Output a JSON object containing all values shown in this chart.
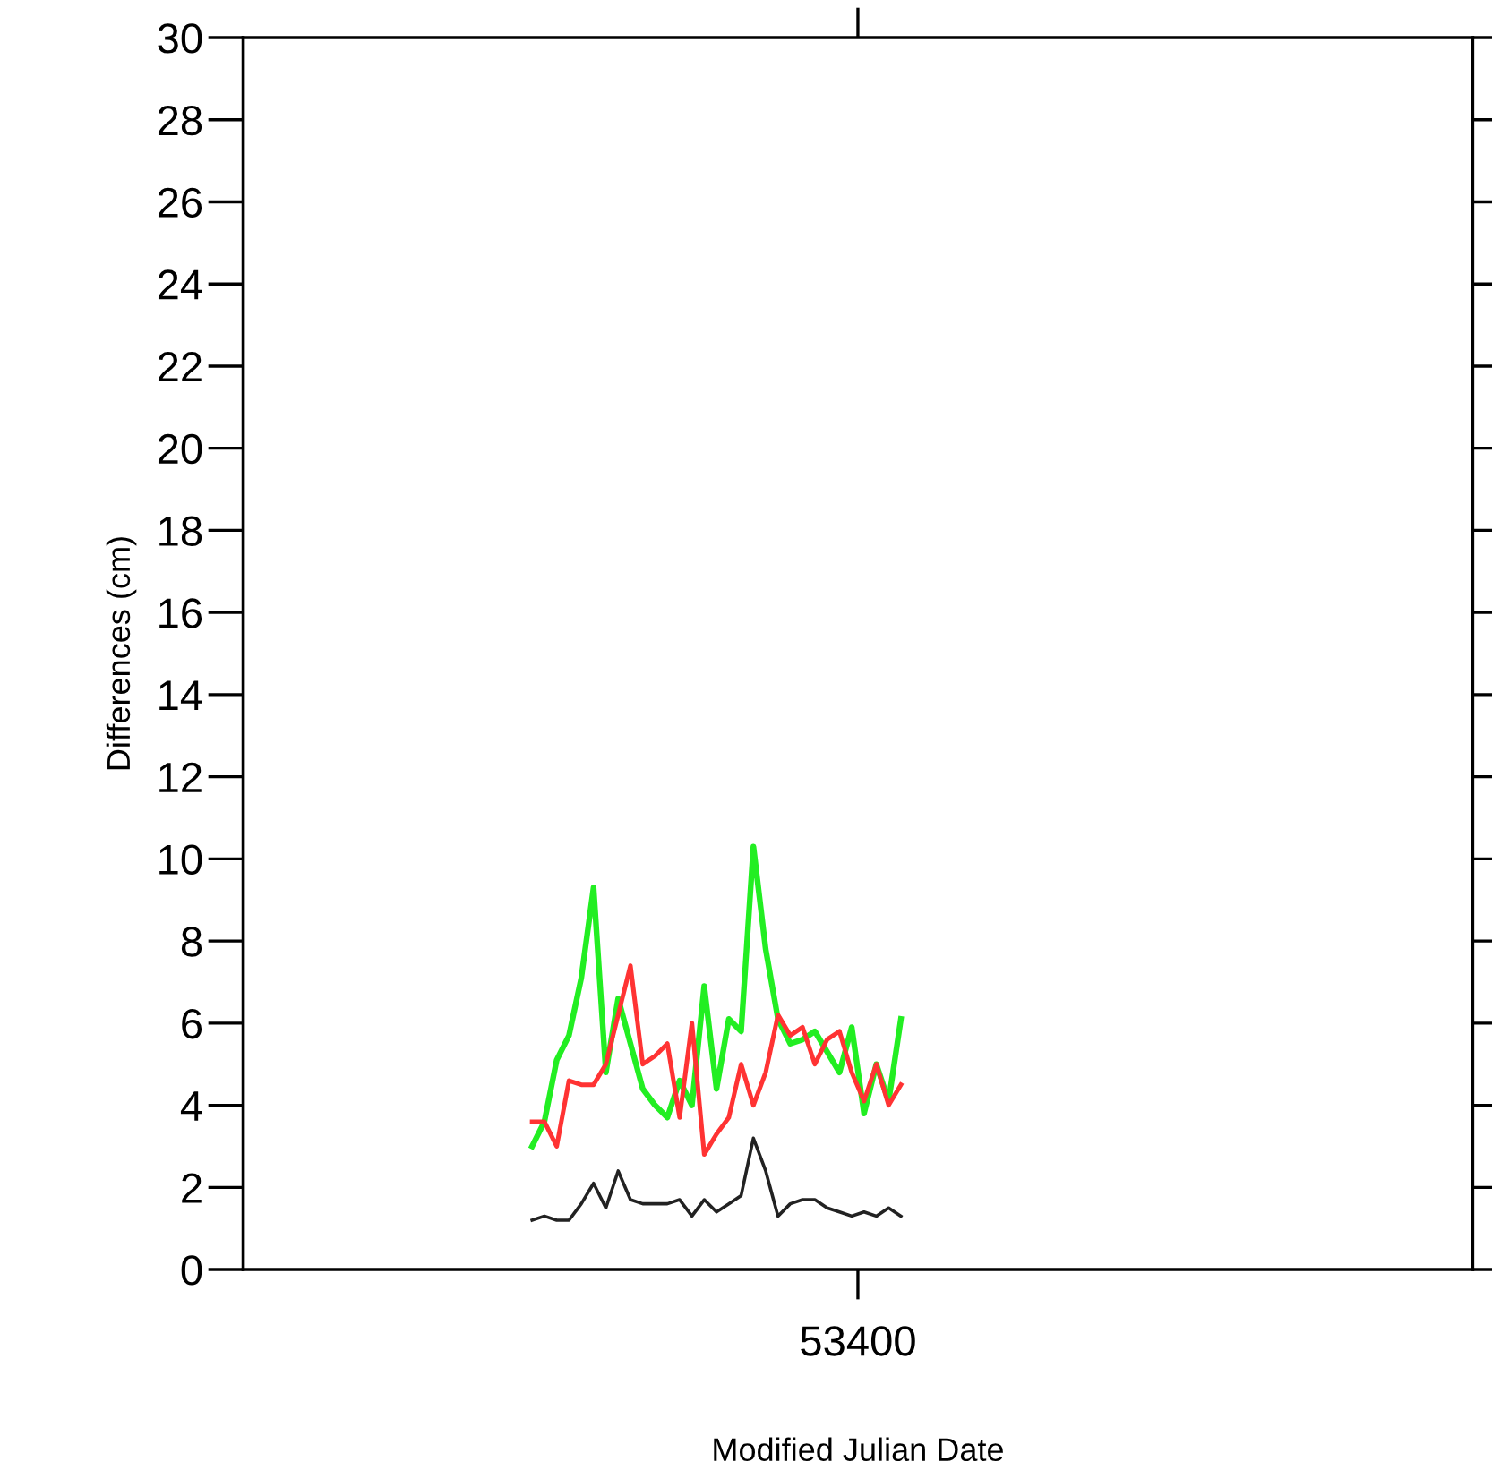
{
  "chart_data": {
    "type": "line",
    "xlabel": "Modified Julian Date",
    "ylabel": "Differences (cm)",
    "annotations": [
      "53400"
    ],
    "categories": [
      null,
      null,
      null,
      null,
      null,
      null,
      null,
      null,
      null,
      null,
      null,
      null,
      null,
      null,
      null,
      null,
      null,
      null,
      null,
      null,
      null,
      null,
      null,
      null,
      null,
      null,
      null,
      null,
      null,
      null,
      null,
      null,
      null,
      null,
      null,
      null,
      null,
      null,
      null,
      null,
      null,
      null,
      null,
      null,
      null,
      null,
      null,
      null,
      null,
      null,
      null,
      null,
      null,
      null,
      null,
      null,
      null,
      null,
      null,
      null,
      null,
      null,
      null,
      null,
      null,
      null,
      null,
      null,
      null,
      null,
      null,
      null,
      null,
      null,
      null,
      null,
      null,
      null,
      null,
      null,
      null,
      null,
      null,
      null,
      null,
      null,
      null,
      null,
      null,
      null,
      null,
      null,
      null,
      null,
      null,
      null,
      null,
      null,
      null,
      null
    ],
    "ylim": [
      0,
      30
    ],
    "yticks": [
      0,
      2,
      4,
      6,
      8,
      10,
      12,
      14,
      16,
      18,
      20,
      22,
      24,
      26,
      28,
      30
    ],
    "grid": false,
    "legend": false,
    "marker": "none",
    "line_style": "solid",
    "series": [
      {
        "color": "#22ee22",
        "values": [
          null,
          null,
          null,
          null,
          null,
          null,
          null,
          null,
          null,
          null,
          null,
          null,
          null,
          null,
          null,
          null,
          null,
          null,
          null,
          null,
          null,
          null,
          null,
          3.0,
          3.6,
          5.1,
          5.7,
          7.1,
          9.3,
          4.8,
          6.6,
          5.5,
          4.4,
          4.0,
          3.7,
          4.6,
          4.0,
          6.9,
          4.4,
          6.1,
          5.8,
          10.3,
          7.8,
          6.1,
          5.5,
          5.6,
          5.8,
          5.3,
          4.8,
          5.9,
          3.8,
          5.0,
          4.1,
          6.1,
          null,
          null,
          null,
          null,
          null,
          null,
          null,
          null,
          null,
          null,
          null,
          null,
          null,
          null,
          null,
          null,
          null,
          null,
          null,
          null,
          null,
          null,
          null,
          null,
          null,
          null,
          null,
          null,
          null,
          null,
          null,
          null,
          null,
          null,
          null,
          null,
          null,
          null,
          null,
          null,
          null,
          null,
          null,
          null,
          null,
          null
        ]
      },
      {
        "color": "#ff3333",
        "values": [
          null,
          null,
          null,
          null,
          null,
          null,
          null,
          null,
          null,
          null,
          null,
          null,
          null,
          null,
          null,
          null,
          null,
          null,
          null,
          null,
          null,
          null,
          null,
          3.6,
          3.6,
          3.0,
          4.6,
          4.5,
          4.5,
          5.0,
          6.2,
          7.4,
          5.0,
          5.2,
          5.5,
          3.7,
          6.0,
          2.8,
          3.3,
          3.7,
          5.0,
          4.0,
          4.8,
          6.2,
          5.7,
          5.9,
          5.0,
          5.6,
          5.8,
          4.8,
          4.1,
          5.0,
          4.0,
          4.5,
          null,
          null,
          null,
          null,
          null,
          null,
          null,
          null,
          null,
          null,
          null,
          null,
          null,
          null,
          null,
          null,
          null,
          null,
          null,
          null,
          null,
          null,
          null,
          null,
          null,
          null,
          null,
          null,
          null,
          null,
          null,
          null,
          null,
          null,
          null,
          null,
          null,
          null,
          null,
          null,
          null,
          null,
          null,
          null,
          null,
          null
        ]
      },
      {
        "color": "#222222",
        "values": [
          null,
          null,
          null,
          null,
          null,
          null,
          null,
          null,
          null,
          null,
          null,
          null,
          null,
          null,
          null,
          null,
          null,
          null,
          null,
          null,
          null,
          null,
          null,
          1.2,
          1.3,
          1.2,
          1.2,
          1.6,
          2.1,
          1.5,
          2.4,
          1.7,
          1.6,
          1.6,
          1.6,
          1.7,
          1.3,
          1.7,
          1.4,
          1.6,
          1.8,
          3.2,
          2.4,
          1.3,
          1.6,
          1.7,
          1.7,
          1.5,
          1.4,
          1.3,
          1.4,
          1.3,
          1.5,
          1.3,
          null,
          null,
          null,
          null,
          null,
          null,
          null,
          null,
          null,
          null,
          null,
          null,
          null,
          null,
          null,
          null,
          null,
          null,
          null,
          null,
          null,
          null,
          null,
          null,
          null,
          null,
          null,
          null,
          null,
          null,
          null,
          null,
          null,
          null,
          null,
          null,
          null,
          null,
          null,
          null,
          null,
          null,
          null,
          null,
          null,
          null
        ]
      }
    ]
  }
}
